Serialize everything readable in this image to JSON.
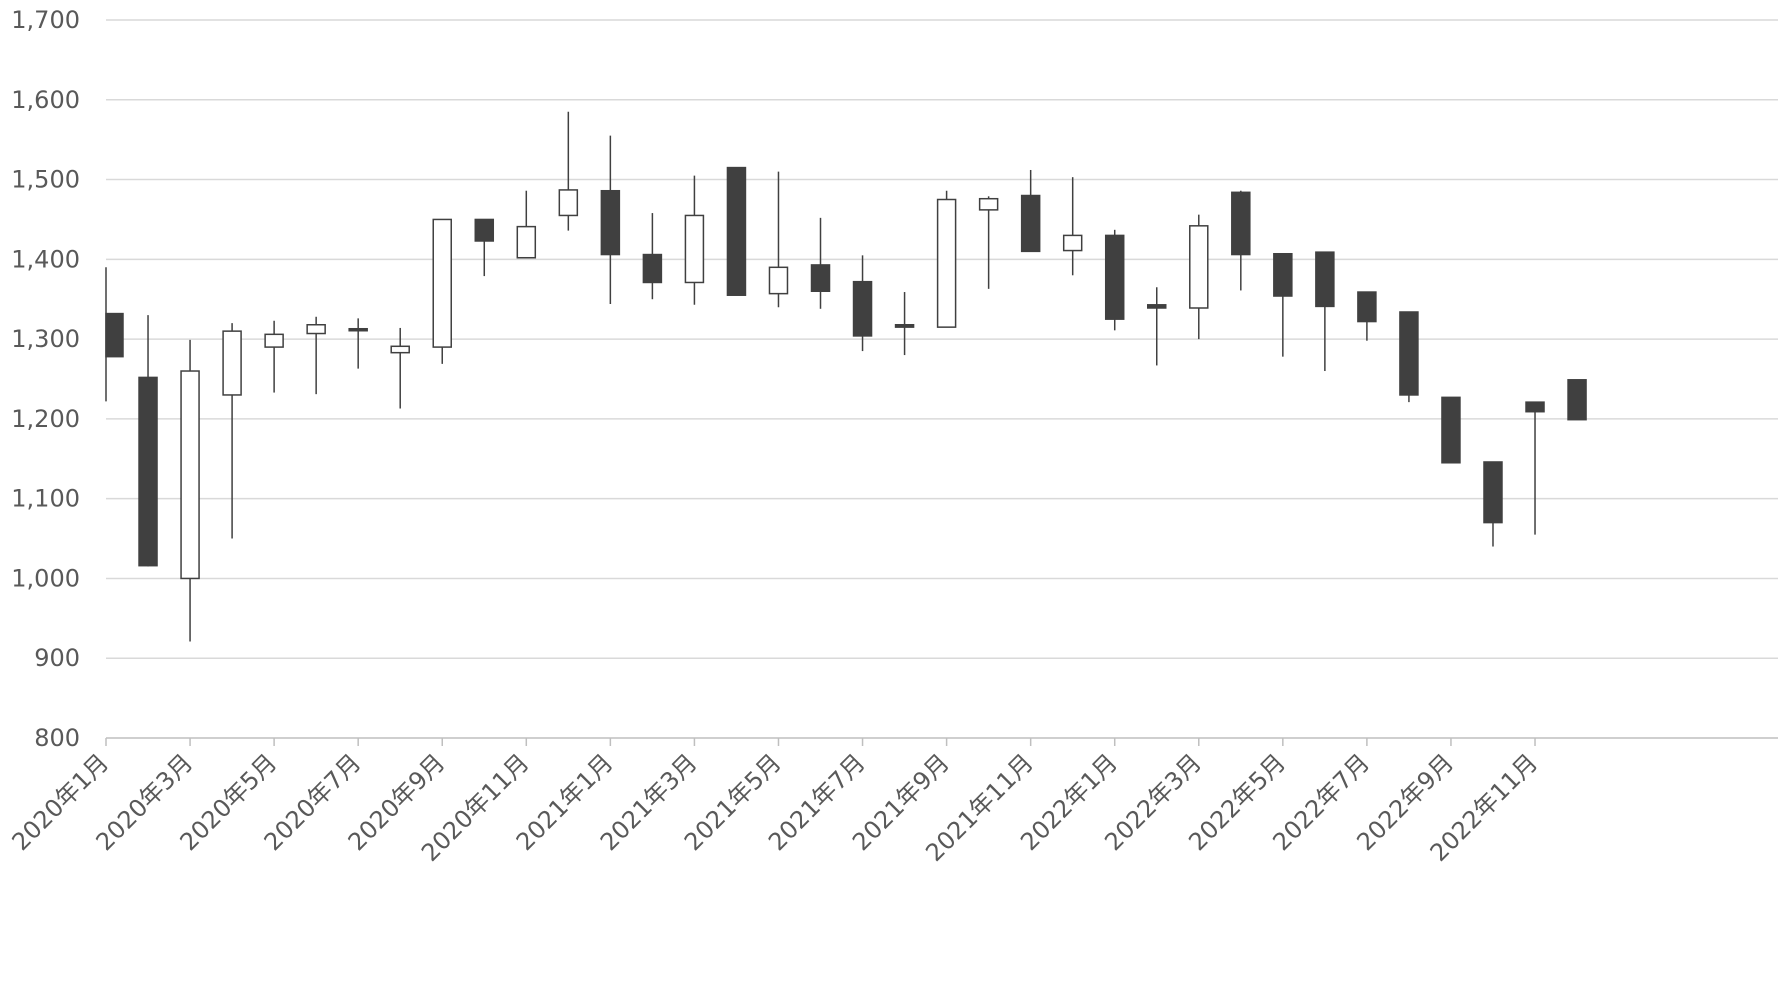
{
  "chart_data": {
    "type": "candlestick",
    "title": "",
    "xlabel": "",
    "ylabel": "",
    "ylim": [
      800,
      1700
    ],
    "y_ticks": [
      "800",
      "900",
      "1,000",
      "1,100",
      "1,200",
      "1,300",
      "1,400",
      "1,500",
      "1,600",
      "1,700"
    ],
    "y_tick_values": [
      800,
      900,
      1000,
      1100,
      1200,
      1300,
      1400,
      1500,
      1600,
      1700
    ],
    "x_tick_labels": [
      "2020年1月",
      "2020年3月",
      "2020年5月",
      "2020年7月",
      "2020年9月",
      "2020年11月",
      "2021年1月",
      "2021年3月",
      "2021年5月",
      "2021年7月",
      "2021年9月",
      "2021年11月",
      "2022年1月",
      "2022年3月",
      "2022年5月",
      "2022年7月",
      "2022年9月",
      "2022年11月"
    ],
    "grid": true,
    "colors": {
      "up_fill": "#ffffff",
      "down_fill": "#404040",
      "line": "#404040",
      "grid": "#d9d9d9",
      "text": "#595959"
    },
    "candles": [
      {
        "month": "2020年1月",
        "open": 1332,
        "high": 1390,
        "low": 1222,
        "close": 1278
      },
      {
        "month": "2020年2月",
        "open": 1252,
        "high": 1330,
        "low": 1015,
        "close": 1016
      },
      {
        "month": "2020年3月",
        "open": 1000,
        "high": 1299,
        "low": 921,
        "close": 1260
      },
      {
        "month": "2020年4月",
        "open": 1230,
        "high": 1320,
        "low": 1050,
        "close": 1310
      },
      {
        "month": "2020年5月",
        "open": 1290,
        "high": 1323,
        "low": 1233,
        "close": 1306
      },
      {
        "month": "2020年6月",
        "open": 1307,
        "high": 1328,
        "low": 1231,
        "close": 1318
      },
      {
        "month": "2020年7月",
        "open": 1313,
        "high": 1326,
        "low": 1263,
        "close": 1311
      },
      {
        "month": "2020年8月",
        "open": 1283,
        "high": 1314,
        "low": 1213,
        "close": 1291
      },
      {
        "month": "2020年9月",
        "open": 1290,
        "high": 1450,
        "low": 1269,
        "close": 1450
      },
      {
        "month": "2020年10月",
        "open": 1450,
        "high": 1450,
        "low": 1379,
        "close": 1423
      },
      {
        "month": "2020年11月",
        "open": 1402,
        "high": 1486,
        "low": 1402,
        "close": 1441
      },
      {
        "month": "2020年12月",
        "open": 1455,
        "high": 1585,
        "low": 1436,
        "close": 1487
      },
      {
        "month": "2021年1月",
        "open": 1486,
        "high": 1555,
        "low": 1344,
        "close": 1406
      },
      {
        "month": "2021年2月",
        "open": 1406,
        "high": 1458,
        "low": 1350,
        "close": 1371
      },
      {
        "month": "2021年3月",
        "open": 1371,
        "high": 1505,
        "low": 1343,
        "close": 1455
      },
      {
        "month": "2021年4月",
        "open": 1515,
        "high": 1515,
        "low": 1355,
        "close": 1355
      },
      {
        "month": "2021年5月",
        "open": 1357,
        "high": 1510,
        "low": 1340,
        "close": 1390
      },
      {
        "month": "2021年6月",
        "open": 1393,
        "high": 1452,
        "low": 1338,
        "close": 1360
      },
      {
        "month": "2021年7月",
        "open": 1372,
        "high": 1405,
        "low": 1285,
        "close": 1304
      },
      {
        "month": "2021年8月",
        "open": 1318,
        "high": 1359,
        "low": 1280,
        "close": 1315
      },
      {
        "month": "2021年9月",
        "open": 1315,
        "high": 1486,
        "low": 1315,
        "close": 1475
      },
      {
        "month": "2021年10月",
        "open": 1462,
        "high": 1479,
        "low": 1363,
        "close": 1476
      },
      {
        "month": "2021年11月",
        "open": 1480,
        "high": 1512,
        "low": 1410,
        "close": 1410
      },
      {
        "month": "2021年12月",
        "open": 1411,
        "high": 1503,
        "low": 1380,
        "close": 1430
      },
      {
        "month": "2022年1月",
        "open": 1430,
        "high": 1437,
        "low": 1311,
        "close": 1325
      },
      {
        "month": "2022年2月",
        "open": 1343,
        "high": 1365,
        "low": 1267,
        "close": 1339
      },
      {
        "month": "2022年3月",
        "open": 1339,
        "high": 1456,
        "low": 1300,
        "close": 1442
      },
      {
        "month": "2022年4月",
        "open": 1484,
        "high": 1486,
        "low": 1361,
        "close": 1406
      },
      {
        "month": "2022年5月",
        "open": 1407,
        "high": 1407,
        "low": 1278,
        "close": 1354
      },
      {
        "month": "2022年6月",
        "open": 1409,
        "high": 1409,
        "low": 1260,
        "close": 1341
      },
      {
        "month": "2022年7月",
        "open": 1359,
        "high": 1359,
        "low": 1298,
        "close": 1322
      },
      {
        "month": "2022年8月",
        "open": 1334,
        "high": 1334,
        "low": 1221,
        "close": 1230
      },
      {
        "month": "2022年9月",
        "open": 1227,
        "high": 1227,
        "low": 1145,
        "close": 1145
      },
      {
        "month": "2022年10月",
        "open": 1146,
        "high": 1146,
        "low": 1040,
        "close": 1070
      },
      {
        "month": "2022年11月",
        "open": 1221,
        "high": 1221,
        "low": 1055,
        "close": 1209
      },
      {
        "month": "2022年12月",
        "open": 1249,
        "high": 1249,
        "low": 1199,
        "close": 1199
      }
    ]
  }
}
